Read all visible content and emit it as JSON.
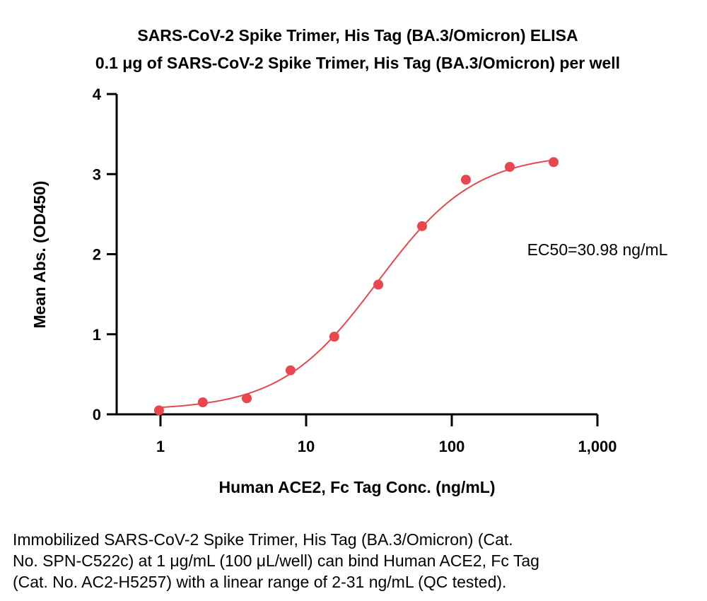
{
  "chart_data": {
    "type": "scatter",
    "title": "SARS-CoV-2 Spike Trimer, His Tag (BA.3/Omicron) ELISA",
    "subtitle": "0.1 μg of SARS-CoV-2 Spike Trimer, His Tag (BA.3/Omicron) per well",
    "xlabel": "Human ACE2, Fc Tag Conc. (ng/mL)",
    "ylabel": "Mean Abs. (OD450)",
    "x_scale": "log",
    "xlim": [
      0.5,
      1000
    ],
    "ylim": [
      0,
      4
    ],
    "x_ticks": [
      1,
      10,
      100,
      1000
    ],
    "x_tick_labels": [
      "1",
      "10",
      "100",
      "1,000"
    ],
    "y_ticks": [
      0,
      1,
      2,
      3,
      4
    ],
    "y_tick_labels": [
      "0",
      "1",
      "2",
      "3",
      "4"
    ],
    "grid": false,
    "color": "#e8474f",
    "series": [
      {
        "x": [
          0.977,
          1.95,
          3.91,
          7.81,
          15.6,
          31.3,
          62.5,
          125,
          250,
          500
        ],
        "y": [
          0.05,
          0.15,
          0.2,
          0.55,
          0.97,
          1.62,
          2.35,
          2.93,
          3.09,
          3.15
        ]
      }
    ],
    "fit": {
      "bottom": 0.05,
      "top": 3.26,
      "ec50": 30.98,
      "hill": 1.3
    },
    "annotation": "EC50=30.98 ng/mL"
  },
  "caption": [
    "Immobilized SARS-CoV-2 Spike Trimer, His Tag (BA.3/Omicron) (Cat.",
    "No. SPN-C522c) at 1 μg/mL (100 μL/well) can bind Human ACE2, Fc Tag",
    "(Cat. No. AC2-H5257) with a linear range of 2-31 ng/mL (QC tested)."
  ]
}
